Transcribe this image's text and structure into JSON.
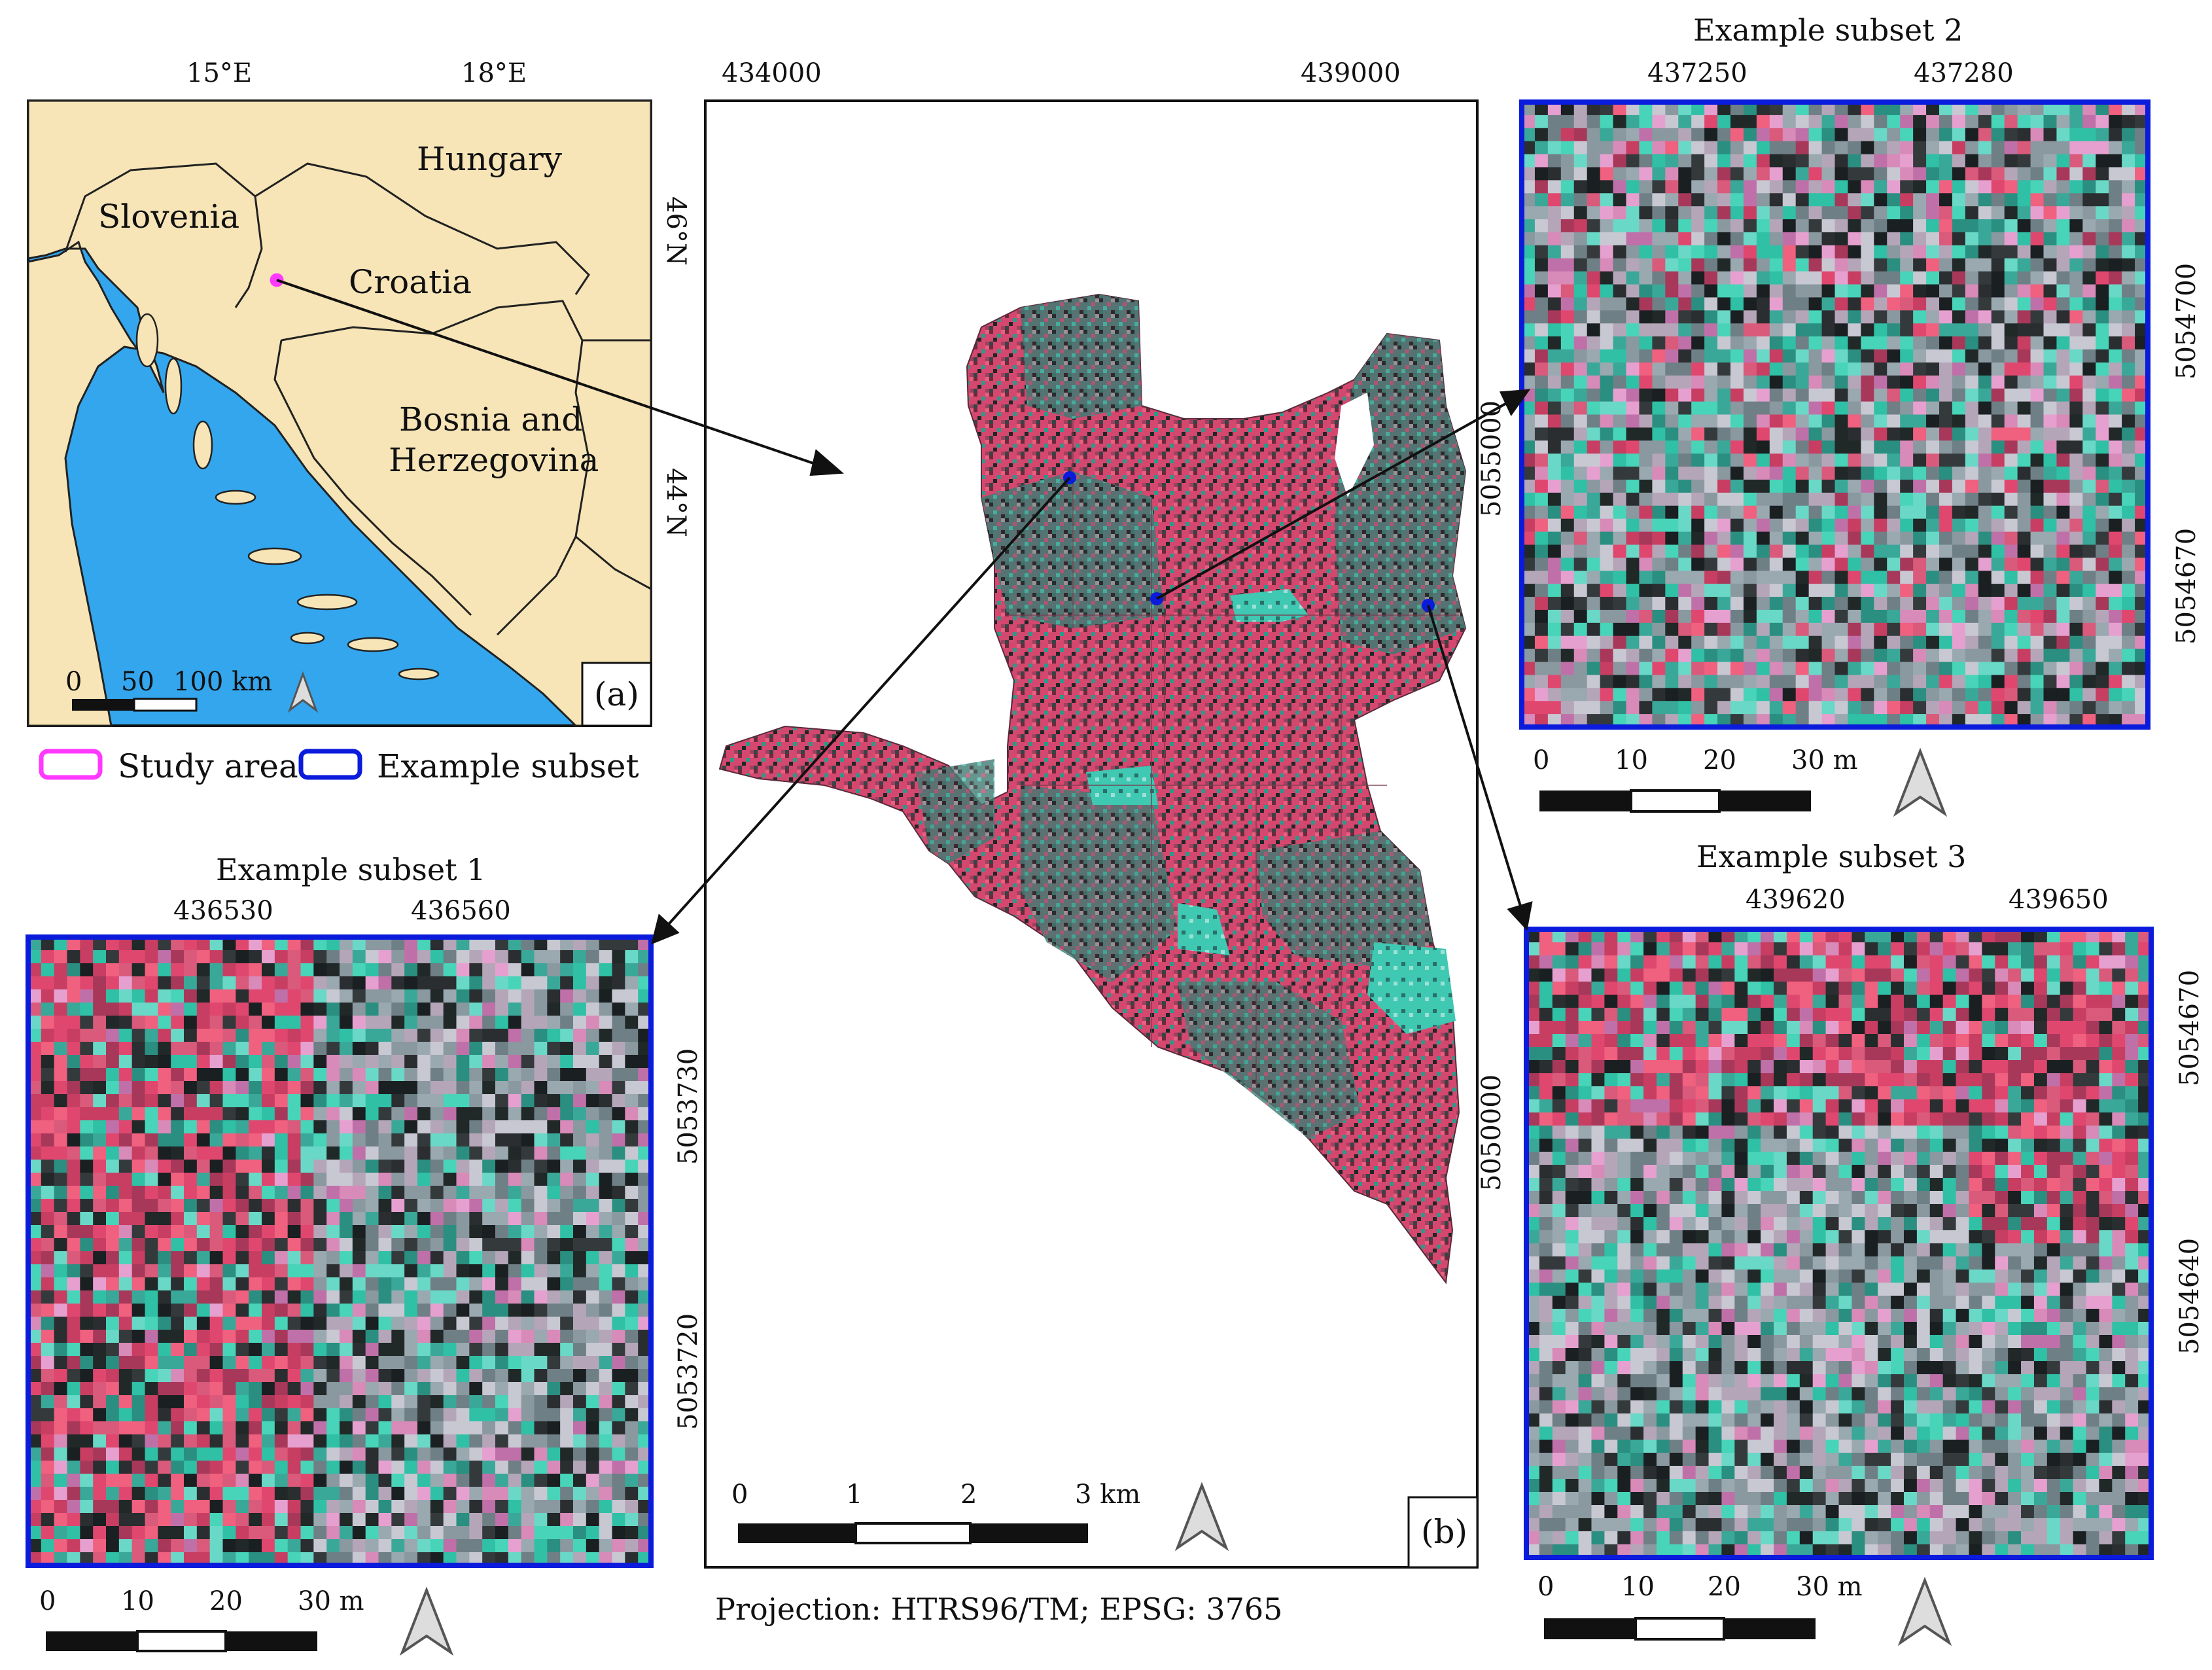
{
  "inset_a": {
    "panel_label": "(a)",
    "lon_ticks": [
      "15°E",
      "18°E"
    ],
    "lat_ticks": [
      "46°N",
      "44°N"
    ],
    "countries": {
      "slovenia": "Slovenia",
      "hungary": "Hungary",
      "croatia": "Croatia",
      "bosnia_1": "Bosnia and",
      "bosnia_2": "Herzegovina"
    },
    "scale_labels": [
      "0",
      "50",
      "100 km"
    ],
    "colors": {
      "land": "#f7e5b7",
      "sea": "#33a6ee",
      "study_area": "#ff39ff"
    }
  },
  "legend": {
    "study_area": "Study area",
    "example_subset": "Example subset",
    "colors": {
      "study_area": "#ff39ff",
      "example_subset": "#0b1bdc"
    }
  },
  "main_b": {
    "panel_label": "(b)",
    "x_ticks": [
      "434000",
      "439000"
    ],
    "y_ticks": [
      "5055000",
      "5050000"
    ],
    "scale_labels": [
      "0",
      "1",
      "2",
      "3 km"
    ],
    "projection": "Projection: HTRS96/TM; EPSG: 3765",
    "colors": {
      "forest_red": "#d4486f",
      "canopy_cyan": "#2fb4a0",
      "point": "#0b1bdc"
    }
  },
  "subsets": [
    {
      "title": "Example subset 1",
      "x_ticks": [
        "436530",
        "436560"
      ],
      "y_ticks": [
        "5053730",
        "5053720"
      ],
      "scale_labels": [
        "0",
        "10",
        "20",
        "30 m"
      ]
    },
    {
      "title": "Example subset 2",
      "x_ticks": [
        "437250",
        "437280"
      ],
      "y_ticks": [
        "5054700",
        "5054670"
      ],
      "scale_labels": [
        "0",
        "10",
        "20",
        "30 m"
      ]
    },
    {
      "title": "Example subset 3",
      "x_ticks": [
        "439620",
        "439650"
      ],
      "y_ticks": [
        "5054670",
        "5054640"
      ],
      "scale_labels": [
        "0",
        "10",
        "20",
        "30 m"
      ]
    }
  ]
}
